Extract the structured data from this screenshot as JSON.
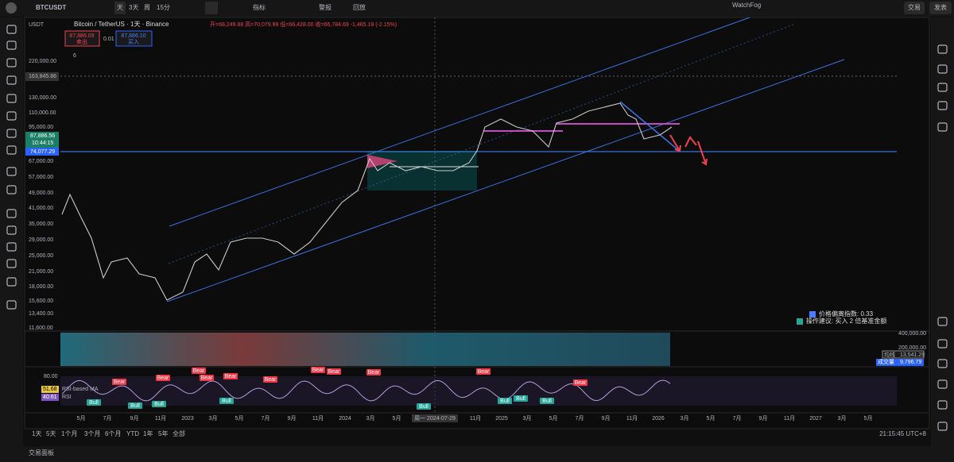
{
  "toolbar": {
    "symbol": "BTCUSDT",
    "intervals": [
      "天",
      "3天",
      "周",
      "15分"
    ],
    "indicators": "指标",
    "alert": "警报",
    "replay": "回放",
    "user": "WatchFog",
    "trade": "交易",
    "publish": "发表"
  },
  "legend": {
    "currency": "USDT",
    "title": "Bitcoin / TetherUS · 1天 · Binance",
    "ohlc": "开=68,249.88 高=70,079.99 低=66,428.00 收=66,784.69 -1,465.19 (-2.15%)",
    "sell_price": "87,886.09",
    "sell": "卖出",
    "qty": "0.01",
    "buy_price": "87,886.10",
    "buy": "买入",
    "count": "6"
  },
  "price_axis": {
    "labels": [
      "220,000.00",
      "130,000.00",
      "110,000.00",
      "95,000.00",
      "67,000.00",
      "57,000.00",
      "49,000.00",
      "41,000.00",
      "35,000.00",
      "29,000.00",
      "25,000.00",
      "21,000.00",
      "18,000.00",
      "15,600.00",
      "13,400.00",
      "11,600.00"
    ],
    "high_marker": "163,845.86",
    "last_price": "87,886.56",
    "countdown": "10:44:15",
    "level": "74,077.29"
  },
  "annotation": {
    "deviation": "价格偏离指数: 0.33",
    "advice": "操作建议: 买入 2 倍基准金额"
  },
  "volume": {
    "axis": [
      "400,000.00",
      "200,000.00"
    ],
    "ma_label": "均线",
    "ma_value": "13,541.29",
    "vol_label": "成交量",
    "vol_value": "9,796.79"
  },
  "rsi": {
    "level": "80.00",
    "ma_value": "51.68",
    "ma_label": "RSI-based MA",
    "rsi_value": "40.61",
    "rsi_label": "RSI",
    "signals": [
      "Bear",
      "Bear",
      "Bear",
      "Bear",
      "Bear",
      "Bear",
      "Bear",
      "Bear",
      "Bear",
      "Bear",
      "Bear",
      "Bull",
      "Bull",
      "Bull",
      "Bull",
      "Bull",
      "Bull",
      "Bull",
      "Bull"
    ]
  },
  "time_axis": {
    "labels": [
      "5月",
      "7月",
      "9月",
      "11月",
      "2023",
      "3月",
      "5月",
      "7月",
      "9月",
      "11月",
      "2024",
      "3月",
      "5月",
      "周一 2024-07-29",
      "11月",
      "2025",
      "3月",
      "5月",
      "7月",
      "9月",
      "11月",
      "2026",
      "3月",
      "5月",
      "7月",
      "9月",
      "11月",
      "2027",
      "3月",
      "5月"
    ]
  },
  "bottom_bar": {
    "ranges": [
      "1天",
      "5天",
      "1个月",
      "3个月",
      "6个月",
      "YTD",
      "1年",
      "5年",
      "全部"
    ],
    "clock": "21:15:45 UTC+8"
  },
  "footer": {
    "panel": "交易面板"
  }
}
